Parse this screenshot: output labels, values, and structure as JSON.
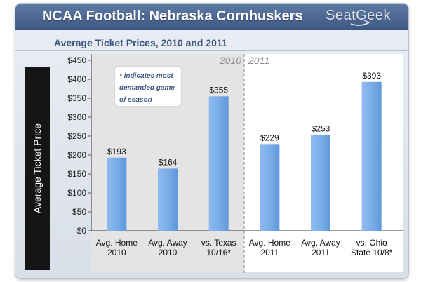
{
  "header": {
    "title": "NCAA Football: Nebraska Cornhuskers",
    "logo_text": "SeatGeek"
  },
  "colors": {
    "header": "#4a6790",
    "bar": "#7aaee8",
    "shaded_region": "#e4e4e4",
    "ylabel_band": "#151515"
  },
  "note": {
    "text": "* indicates most demanded game of season"
  },
  "chart_data": {
    "type": "bar",
    "title": "Average Ticket Prices, 2010 and 2011",
    "ylabel": "Average Ticket Price",
    "xlabel": "",
    "ylim": [
      0,
      450
    ],
    "y_ticks": [
      "$0",
      "$50",
      "$100",
      "$150",
      "$200",
      "$250",
      "$300",
      "$350",
      "$400",
      "$450"
    ],
    "categories": [
      [
        "Avg. Home",
        "2010"
      ],
      [
        "Avg. Away",
        "2010"
      ],
      [
        "vs. Texas",
        "10/16*"
      ],
      [
        "Avg. Home",
        "2011"
      ],
      [
        "Avg. Away",
        "2011"
      ],
      [
        "vs. Ohio",
        "State 10/8*"
      ]
    ],
    "values": [
      193,
      164,
      355,
      229,
      253,
      393
    ],
    "value_labels": [
      "$193",
      "$164",
      "$355",
      "$229",
      "$253",
      "$393"
    ],
    "regions": [
      {
        "label": "2010",
        "categories": 3,
        "shaded": true
      },
      {
        "label": "2011",
        "categories": 3,
        "shaded": false
      }
    ],
    "grid": false
  }
}
